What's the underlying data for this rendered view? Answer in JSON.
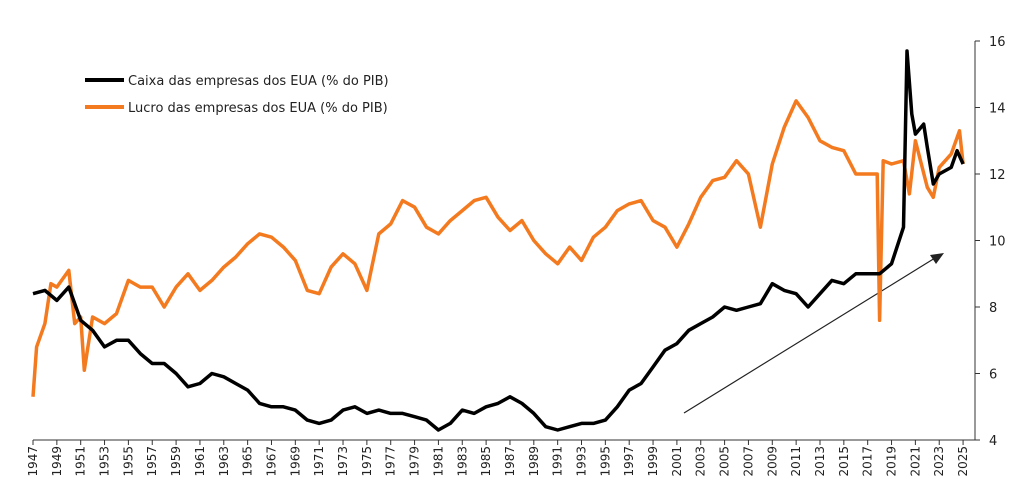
{
  "chart_data": {
    "type": "line",
    "xlim": [
      1947,
      2026
    ],
    "ylim": [
      4,
      16
    ],
    "xticks": [
      1947,
      1949,
      1951,
      1953,
      1955,
      1957,
      1959,
      1961,
      1963,
      1965,
      1967,
      1969,
      1971,
      1973,
      1975,
      1977,
      1979,
      1981,
      1983,
      1985,
      1987,
      1989,
      1991,
      1993,
      1995,
      1997,
      1999,
      2001,
      2003,
      2005,
      2007,
      2009,
      2011,
      2013,
      2015,
      2017,
      2019,
      2021,
      2023,
      2025
    ],
    "yticks": [
      4,
      6,
      8,
      10,
      12,
      14,
      16
    ],
    "y_axis_side": "right",
    "series": [
      {
        "name": "Caixa das empresas dos EUA (% do PIB)",
        "color": "#000000",
        "x": [
          1947,
          1948,
          1949,
          1950,
          1951,
          1952,
          1953,
          1954,
          1955,
          1956,
          1957,
          1958,
          1959,
          1960,
          1961,
          1962,
          1963,
          1964,
          1965,
          1966,
          1967,
          1968,
          1969,
          1970,
          1971,
          1972,
          1973,
          1974,
          1975,
          1976,
          1977,
          1978,
          1979,
          1980,
          1981,
          1982,
          1983,
          1984,
          1985,
          1986,
          1987,
          1988,
          1989,
          1990,
          1991,
          1992,
          1993,
          1994,
          1995,
          1996,
          1997,
          1998,
          1999,
          2000,
          2001,
          2002,
          2003,
          2004,
          2005,
          2006,
          2007,
          2008,
          2009,
          2010,
          2011,
          2012,
          2013,
          2014,
          2015,
          2016,
          2017,
          2018,
          2019,
          2020,
          2020.3,
          2020.7,
          2021,
          2021.7,
          2022,
          2022.5,
          2023,
          2024,
          2024.5,
          2025
        ],
        "values": [
          8.4,
          8.5,
          8.2,
          8.6,
          7.6,
          7.3,
          6.8,
          7.0,
          7.0,
          6.6,
          6.3,
          6.3,
          6.0,
          5.6,
          5.7,
          6.0,
          5.9,
          5.7,
          5.5,
          5.1,
          5.0,
          5.0,
          4.9,
          4.6,
          4.5,
          4.6,
          4.9,
          5.0,
          4.8,
          4.9,
          4.8,
          4.8,
          4.7,
          4.6,
          4.3,
          4.5,
          4.9,
          4.8,
          5.0,
          5.1,
          5.3,
          5.1,
          4.8,
          4.4,
          4.3,
          4.4,
          4.5,
          4.5,
          4.6,
          5.0,
          5.5,
          5.7,
          6.2,
          6.7,
          6.9,
          7.3,
          7.5,
          7.7,
          8.0,
          7.9,
          8.0,
          8.1,
          8.7,
          8.5,
          8.4,
          8.0,
          8.4,
          8.8,
          8.7,
          9.0,
          9.0,
          9.0,
          9.3,
          10.4,
          15.7,
          13.8,
          13.2,
          13.5,
          12.8,
          11.7,
          12.0,
          12.2,
          12.7,
          12.3
        ]
      },
      {
        "name": "Lucro das empresas dos EUA (% do PIB)",
        "color": "#f47a1f",
        "x": [
          1947,
          1947.3,
          1948,
          1948.5,
          1949,
          1950,
          1950.5,
          1951,
          1951.3,
          1952,
          1953,
          1954,
          1955,
          1956,
          1957,
          1958,
          1959,
          1960,
          1961,
          1962,
          1963,
          1964,
          1965,
          1966,
          1967,
          1968,
          1969,
          1970,
          1971,
          1972,
          1973,
          1974,
          1975,
          1976,
          1977,
          1978,
          1979,
          1980,
          1981,
          1982,
          1983,
          1984,
          1985,
          1986,
          1987,
          1988,
          1989,
          1990,
          1991,
          1992,
          1993,
          1994,
          1995,
          1996,
          1997,
          1998,
          1999,
          2000,
          2001,
          2002,
          2003,
          2004,
          2005,
          2006,
          2007,
          2008,
          2009,
          2010,
          2011,
          2012,
          2013,
          2014,
          2015,
          2016,
          2017,
          2017.8,
          2018,
          2018.3,
          2019,
          2020,
          2020.5,
          2021,
          2022,
          2022.5,
          2023,
          2024,
          2024.7,
          2025
        ],
        "values": [
          5.3,
          6.8,
          7.5,
          8.7,
          8.6,
          9.1,
          7.5,
          7.7,
          6.1,
          7.7,
          7.5,
          7.8,
          8.8,
          8.6,
          8.6,
          8.0,
          8.6,
          9.0,
          8.5,
          8.8,
          9.2,
          9.5,
          9.9,
          10.2,
          10.1,
          9.8,
          9.4,
          8.5,
          8.4,
          9.2,
          9.6,
          9.3,
          8.5,
          10.2,
          10.5,
          11.2,
          11.0,
          10.4,
          10.2,
          10.6,
          10.9,
          11.2,
          11.3,
          10.7,
          10.3,
          10.6,
          10.0,
          9.6,
          9.3,
          9.8,
          9.4,
          10.1,
          10.4,
          10.9,
          11.1,
          11.2,
          10.6,
          10.4,
          9.8,
          10.5,
          11.3,
          11.8,
          11.9,
          12.4,
          12.0,
          10.4,
          12.3,
          13.4,
          14.2,
          13.7,
          13.0,
          12.8,
          12.7,
          12.0,
          12.0,
          12.0,
          7.6,
          12.4,
          12.3,
          12.4,
          11.4,
          13.0,
          11.6,
          11.3,
          12.2,
          12.6,
          13.3,
          12.3
        ]
      }
    ]
  }
}
